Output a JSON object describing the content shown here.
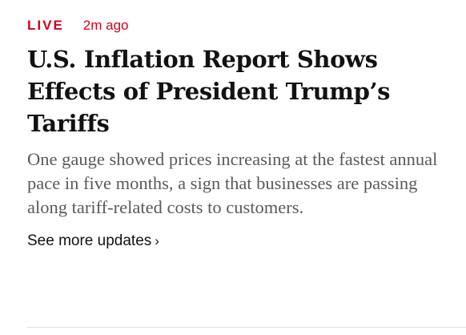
{
  "story": {
    "live_label": "LIVE",
    "timestamp": "2m ago",
    "headline": "U.S. Inflation Report Shows Effects of President Trump’s Tariffs",
    "summary": "One gauge showed prices increasing at the fastest annual pace in five months, a sign that businesses are passing along tariff-related costs to customers.",
    "more_link": "See more updates",
    "more_chevron": "›"
  },
  "colors": {
    "live_accent": "#d0021b",
    "headline_text": "#121212",
    "summary_text": "#5a5a5a",
    "divider": "#dfdfdf"
  },
  "icons": {
    "more_chevron": "chevron-right-icon"
  }
}
